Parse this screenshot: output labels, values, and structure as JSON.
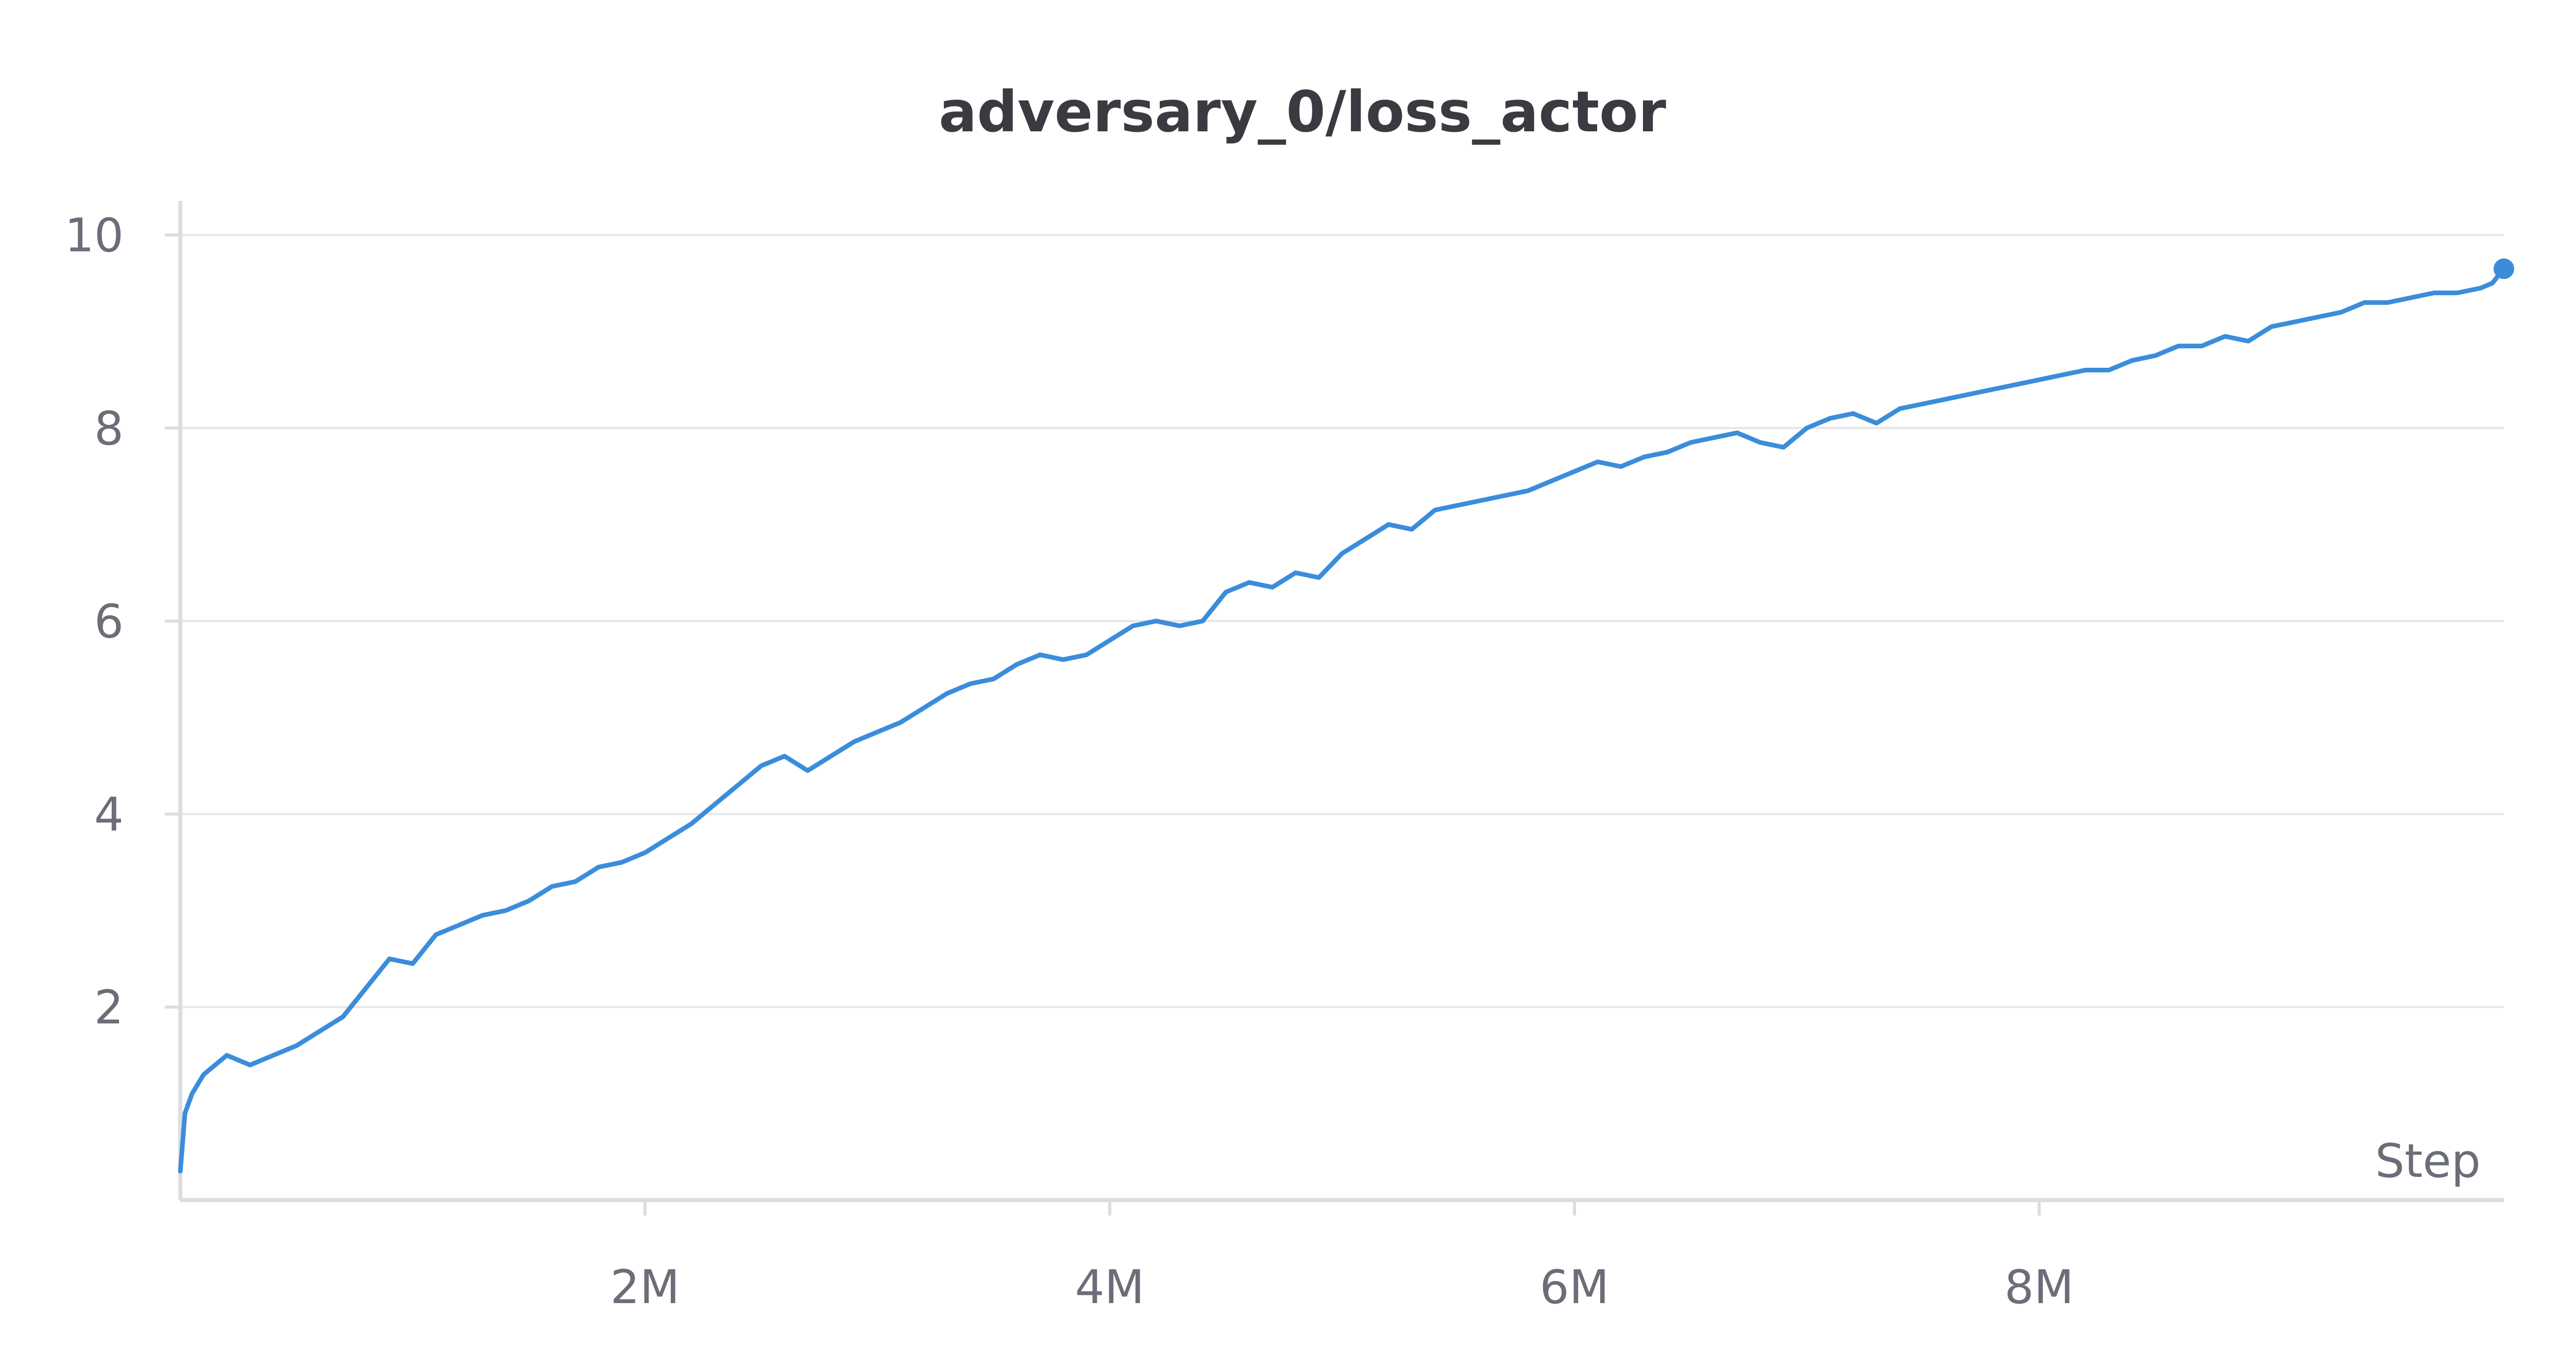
{
  "chart_data": {
    "type": "line",
    "title": "adversary_0/loss_actor",
    "xlabel": "Step",
    "ylabel": "",
    "xlim": [
      0,
      10000000
    ],
    "ylim": [
      0,
      10.3
    ],
    "x_ticks": [
      {
        "value": 2000000,
        "label": "2M"
      },
      {
        "value": 4000000,
        "label": "4M"
      },
      {
        "value": 6000000,
        "label": "6M"
      },
      {
        "value": 8000000,
        "label": "8M"
      }
    ],
    "y_ticks": [
      {
        "value": 2,
        "label": "2"
      },
      {
        "value": 4,
        "label": "4"
      },
      {
        "value": 6,
        "label": "6"
      },
      {
        "value": 8,
        "label": "8"
      },
      {
        "value": 10,
        "label": "10"
      }
    ],
    "grid": true,
    "legend": "none",
    "line_color": "#3b8ddb",
    "series": [
      {
        "name": "",
        "x": [
          0,
          20000,
          50000,
          100000,
          150000,
          200000,
          250000,
          300000,
          400000,
          500000,
          600000,
          700000,
          800000,
          900000,
          1000000,
          1100000,
          1200000,
          1300000,
          1400000,
          1500000,
          1600000,
          1700000,
          1800000,
          1900000,
          2000000,
          2100000,
          2200000,
          2300000,
          2400000,
          2500000,
          2600000,
          2700000,
          2800000,
          2900000,
          3000000,
          3100000,
          3200000,
          3300000,
          3400000,
          3500000,
          3600000,
          3700000,
          3800000,
          3900000,
          4000000,
          4100000,
          4200000,
          4300000,
          4400000,
          4500000,
          4600000,
          4700000,
          4800000,
          4900000,
          5000000,
          5100000,
          5200000,
          5300000,
          5400000,
          5500000,
          5600000,
          5700000,
          5800000,
          5900000,
          6000000,
          6100000,
          6200000,
          6300000,
          6400000,
          6500000,
          6600000,
          6700000,
          6800000,
          6900000,
          7000000,
          7100000,
          7200000,
          7300000,
          7400000,
          7500000,
          7600000,
          7700000,
          7800000,
          7900000,
          8000000,
          8100000,
          8200000,
          8300000,
          8400000,
          8500000,
          8600000,
          8700000,
          8800000,
          8900000,
          9000000,
          9100000,
          9200000,
          9300000,
          9400000,
          9500000,
          9600000,
          9700000,
          9800000,
          9900000,
          9950000,
          10000000
        ],
        "y": [
          0.3,
          0.9,
          1.1,
          1.3,
          1.4,
          1.5,
          1.45,
          1.4,
          1.5,
          1.6,
          1.75,
          1.9,
          2.2,
          2.5,
          2.45,
          2.75,
          2.85,
          2.95,
          3.0,
          3.1,
          3.25,
          3.3,
          3.45,
          3.5,
          3.6,
          3.75,
          3.9,
          4.1,
          4.3,
          4.5,
          4.6,
          4.45,
          4.6,
          4.75,
          4.85,
          4.95,
          5.1,
          5.25,
          5.35,
          5.4,
          5.55,
          5.65,
          5.6,
          5.65,
          5.8,
          5.95,
          6.0,
          5.95,
          6.0,
          6.3,
          6.4,
          6.35,
          6.5,
          6.45,
          6.7,
          6.85,
          7.0,
          6.95,
          7.15,
          7.2,
          7.25,
          7.3,
          7.35,
          7.45,
          7.55,
          7.65,
          7.6,
          7.7,
          7.75,
          7.85,
          7.9,
          7.95,
          7.85,
          7.8,
          8.0,
          8.1,
          8.15,
          8.05,
          8.2,
          8.25,
          8.3,
          8.35,
          8.4,
          8.45,
          8.5,
          8.55,
          8.6,
          8.6,
          8.7,
          8.75,
          8.85,
          8.85,
          8.95,
          8.9,
          9.05,
          9.1,
          9.15,
          9.2,
          9.3,
          9.3,
          9.35,
          9.4,
          9.4,
          9.45,
          9.5,
          9.65
        ]
      }
    ]
  }
}
